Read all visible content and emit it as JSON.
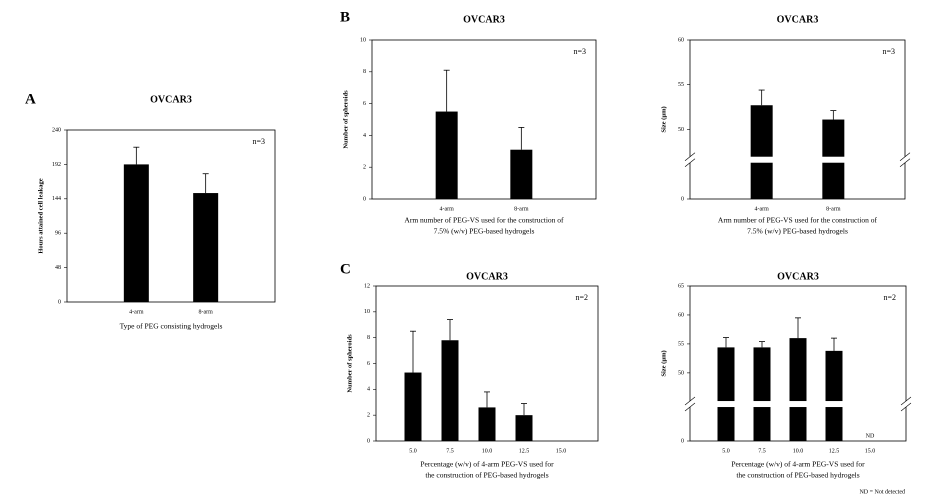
{
  "footnote": "ND = Not detected",
  "chart_data": [
    {
      "type": "bar",
      "panel": "A",
      "title": "OVCAR3",
      "n_label": "n=3",
      "y_label": "Hours attained cell leakage",
      "x_label": [
        "Type of PEG consisting hydrogels"
      ],
      "categories": [
        "4-arm",
        "8-arm"
      ],
      "values": [
        192,
        152
      ],
      "errors": [
        24,
        27
      ],
      "color": "#000000",
      "ylim": [
        0,
        240
      ],
      "yticks": [
        0,
        48,
        96,
        144,
        192,
        240
      ]
    },
    {
      "type": "bar",
      "panel": "B",
      "title": "OVCAR3",
      "n_label": "n=3",
      "y_label": "Number of spheroids",
      "x_label": [
        "Arm number of PEG-VS used for the construction of",
        "7.5% (w/v) PEG-based hydrogels"
      ],
      "categories": [
        "4-arm",
        "8-arm"
      ],
      "values": [
        5.5,
        3.1
      ],
      "errors": [
        2.6,
        1.4
      ],
      "color": "#000000",
      "ylim": [
        0,
        10
      ],
      "yticks": [
        0,
        2,
        4,
        6,
        8,
        10
      ]
    },
    {
      "type": "bar",
      "title": "OVCAR3",
      "n_label": "n=3",
      "y_label": "Size (µm)",
      "x_label": [
        "Arm number of PEG-VS used for the construction of",
        "7.5% (w/v) PEG-based hydrogels"
      ],
      "categories": [
        "4-arm",
        "8-arm"
      ],
      "values": [
        52.7,
        51.1
      ],
      "errors": [
        1.7,
        1.0
      ],
      "color": "#000000",
      "ylim": [
        0,
        60
      ],
      "yticks": [
        0,
        50,
        55,
        60
      ],
      "ybreak": [
        3.5,
        47.5
      ]
    },
    {
      "type": "bar",
      "panel": "C",
      "title": "OVCAR3",
      "n_label": "n=2",
      "y_label": "Number of spheroids",
      "x_label": [
        "Percentage (w/v) of 4-arm PEG-VS used for",
        "the construction of PEG-based hydrogels"
      ],
      "categories": [
        "5.0",
        "7.5",
        "10.0",
        "12.5",
        "15.0"
      ],
      "values": [
        5.3,
        7.8,
        2.6,
        2.0,
        0
      ],
      "errors": [
        3.2,
        1.6,
        1.2,
        0.9,
        0
      ],
      "color": "#000000",
      "ylim": [
        0,
        12
      ],
      "yticks": [
        0,
        2,
        4,
        6,
        8,
        10,
        12
      ]
    },
    {
      "type": "bar",
      "title": "OVCAR3",
      "n_label": "n=2",
      "y_label": "Size (µm)",
      "x_label": [
        "Percentage (w/v) of 4-arm PEG-VS used for",
        "the construction of PEG-based hydrogels"
      ],
      "categories": [
        "5.0",
        "7.5",
        "10.0",
        "12.5",
        "15.0"
      ],
      "values": [
        54.4,
        54.4,
        56.0,
        53.8,
        null
      ],
      "errors": [
        1.7,
        1.0,
        3.5,
        2.2,
        null
      ],
      "value_labels": [
        null,
        null,
        null,
        null,
        "ND"
      ],
      "color": "#000000",
      "ylim": [
        0,
        65
      ],
      "yticks": [
        0,
        50,
        55,
        60,
        65
      ],
      "ybreak": [
        5,
        46
      ]
    }
  ]
}
